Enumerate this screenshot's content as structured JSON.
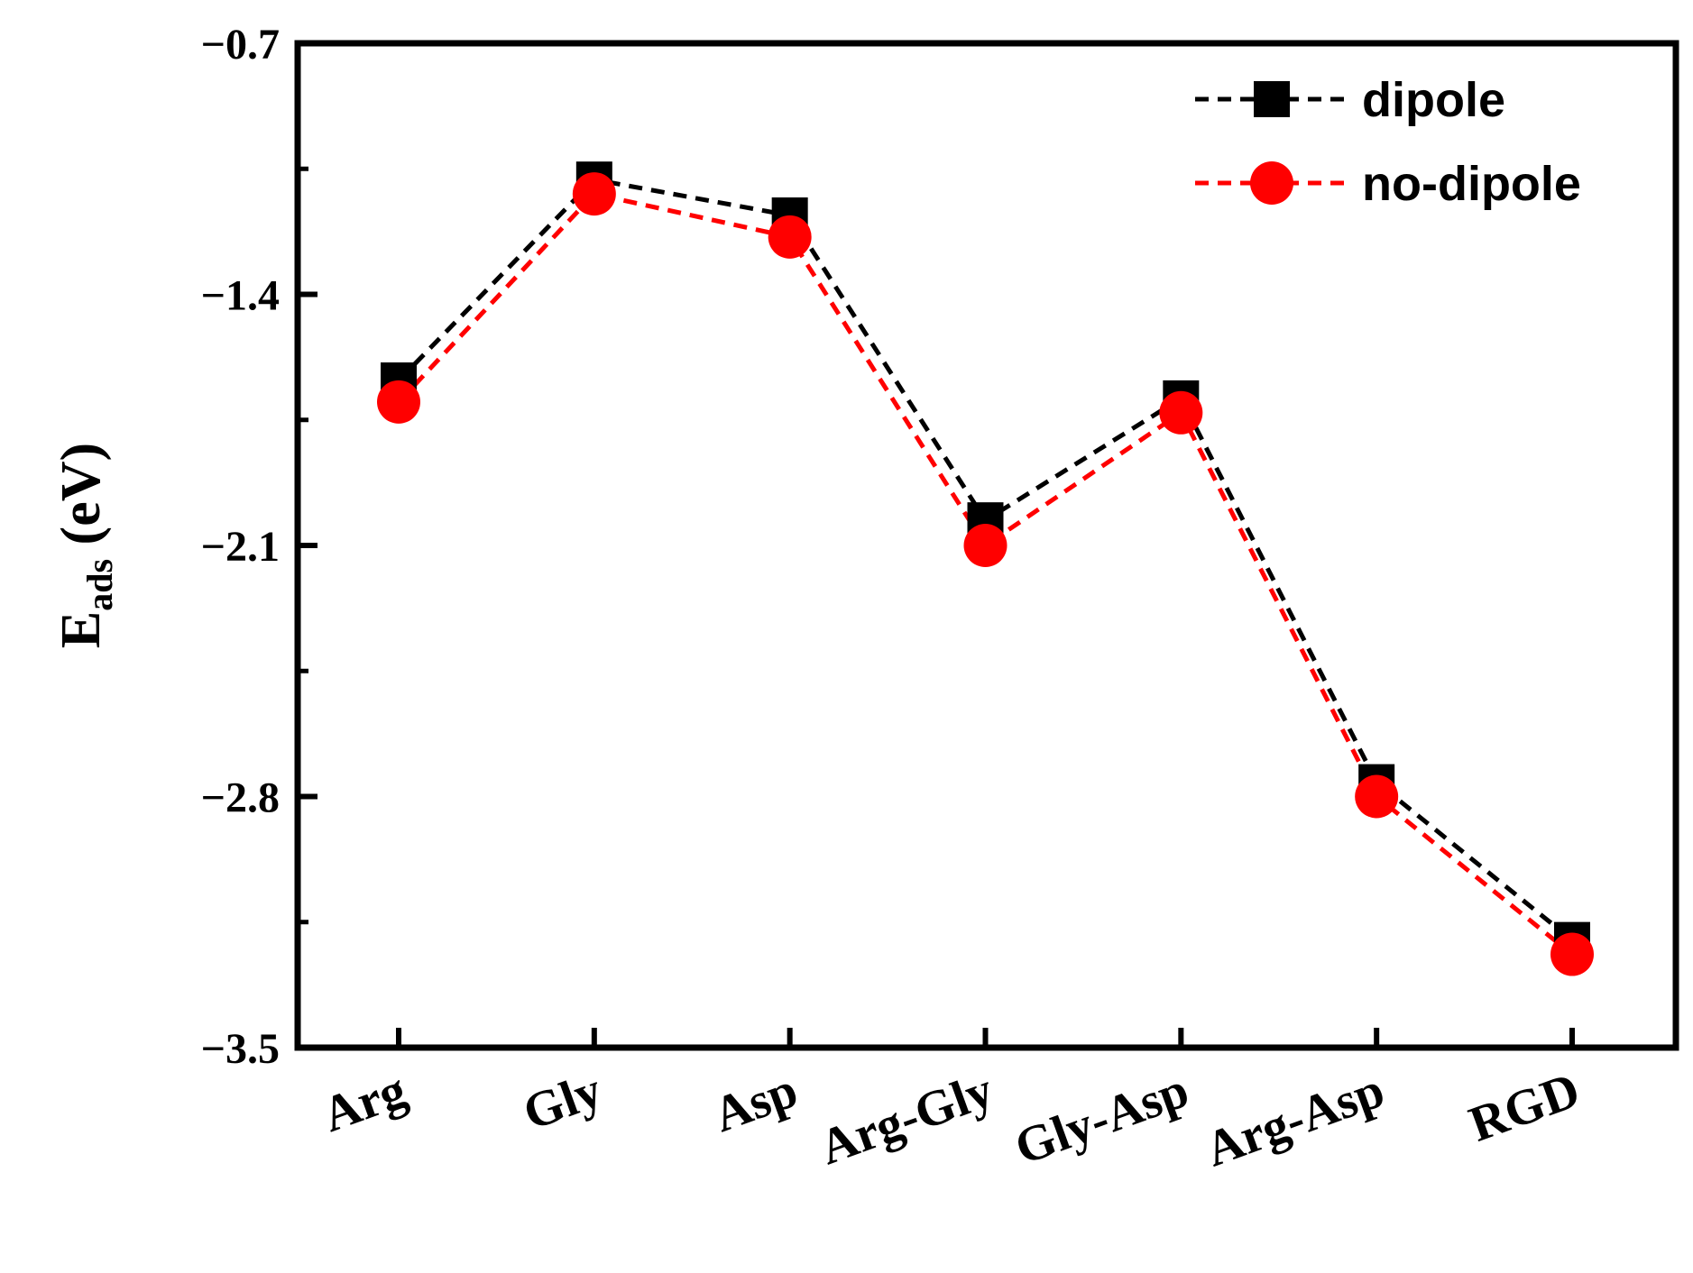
{
  "chart_data": {
    "type": "line",
    "title": "",
    "xlabel": "",
    "ylabel": "E",
    "ylabel_subscript": "ads",
    "ylabel_unit": " (eV)",
    "categories": [
      "Arg",
      "Gly",
      "Asp",
      "Arg-Gly",
      "Gly-Asp",
      "Arg-Asp",
      "RGD"
    ],
    "yticks": [
      -0.7,
      -1.4,
      -2.1,
      -2.8,
      -3.5
    ],
    "ytick_labels": [
      "−0.7",
      "−1.4",
      "−2.1",
      "−2.8",
      "−3.5"
    ],
    "ylim": [
      -3.5,
      -0.7
    ],
    "series": [
      {
        "name": "dipole",
        "color": "#000000",
        "marker": "square",
        "line_style": "dashed",
        "values": [
          -1.64,
          -1.08,
          -1.18,
          -2.03,
          -1.69,
          -2.76,
          -3.2
        ]
      },
      {
        "name": "no-dipole",
        "color": "#ff0000",
        "marker": "circle",
        "line_style": "dashed",
        "values": [
          -1.7,
          -1.12,
          -1.24,
          -2.1,
          -1.73,
          -2.8,
          -3.24
        ]
      }
    ],
    "legend_position": "top-right",
    "grid": false
  }
}
